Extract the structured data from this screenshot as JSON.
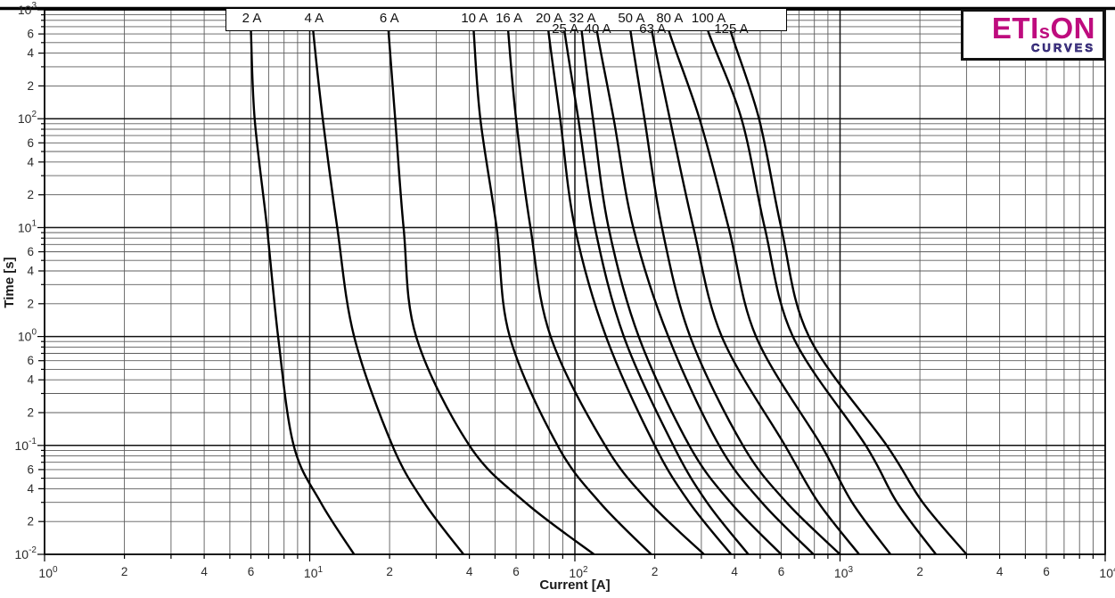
{
  "logo": {
    "text_main_1": "ETI",
    "text_main_2": "s",
    "text_main_3": "ON",
    "text_sub": "CURVES",
    "brand_color": "#BE0C7E",
    "sub_color": "#4A3A8C",
    "sub_outline_color": "#241D66"
  },
  "chart_data": {
    "type": "line",
    "title": "",
    "xlabel": "Current [A]",
    "ylabel": "Time [s]",
    "x_scale": "log",
    "y_scale": "log",
    "xlim": [
      1,
      10000
    ],
    "ylim": [
      0.01,
      1000
    ],
    "grid": "full log-log grid, minor lines 2-9 each decade",
    "legend_position": "labels in white box along top of plot",
    "x_axis": {
      "decade_exponents": [
        0,
        1,
        2,
        3,
        4
      ],
      "minor_labels": [
        "2",
        "4",
        "6"
      ]
    },
    "y_axis": {
      "decade_exponents": [
        3,
        2,
        1,
        0,
        -1,
        -2
      ],
      "minor_labels": [
        "6",
        "4",
        "2"
      ]
    },
    "curve_color": "#000000",
    "grid_major_color": "#111111",
    "grid_minor_color": "#5c5c5c",
    "series": [
      {
        "name": "2 A",
        "label_row": 1,
        "points": [
          [
            5.95,
            1000
          ],
          [
            6.0,
            650
          ],
          [
            6.2,
            100
          ],
          [
            6.9,
            10
          ],
          [
            7.6,
            1
          ],
          [
            8.7,
            0.1
          ],
          [
            11.0,
            0.03
          ],
          [
            14.7,
            0.01
          ]
        ]
      },
      {
        "name": "4 A",
        "label_row": 1,
        "points": [
          [
            10.2,
            1000
          ],
          [
            10.3,
            650
          ],
          [
            11.2,
            100
          ],
          [
            12.7,
            10
          ],
          [
            14.7,
            1
          ],
          [
            20.5,
            0.1
          ],
          [
            27,
            0.03
          ],
          [
            38,
            0.01
          ]
        ]
      },
      {
        "name": "6 A",
        "label_row": 1,
        "points": [
          [
            19.6,
            1000
          ],
          [
            19.8,
            650
          ],
          [
            21,
            100
          ],
          [
            22.6,
            10
          ],
          [
            25.2,
            1
          ],
          [
            40,
            0.1
          ],
          [
            65,
            0.03
          ],
          [
            118,
            0.01
          ]
        ]
      },
      {
        "name": "10 A",
        "label_row": 1,
        "points": [
          [
            41,
            1000
          ],
          [
            41.5,
            650
          ],
          [
            44,
            100
          ],
          [
            50.7,
            10
          ],
          [
            56.8,
            1
          ],
          [
            86,
            0.1
          ],
          [
            124,
            0.03
          ],
          [
            194,
            0.01
          ]
        ]
      },
      {
        "name": "16 A",
        "label_row": 1,
        "points": [
          [
            55.5,
            1000
          ],
          [
            56,
            650
          ],
          [
            60,
            100
          ],
          [
            68,
            10
          ],
          [
            81,
            1
          ],
          [
            130,
            0.1
          ],
          [
            191,
            0.03
          ],
          [
            307,
            0.01
          ]
        ]
      },
      {
        "name": "20 A",
        "label_row": 1,
        "points": [
          [
            78.7,
            1000
          ],
          [
            79.4,
            650
          ],
          [
            88,
            100
          ],
          [
            100,
            10
          ],
          [
            131,
            1
          ],
          [
            200,
            0.1
          ],
          [
            270,
            0.03
          ],
          [
            388,
            0.01
          ]
        ]
      },
      {
        "name": "25 A",
        "label_row": 2,
        "points": [
          [
            90.5,
            1000
          ],
          [
            91.3,
            650
          ],
          [
            103,
            100
          ],
          [
            119,
            10
          ],
          [
            153,
            1
          ],
          [
            235,
            0.1
          ],
          [
            315,
            0.03
          ],
          [
            451,
            0.01
          ]
        ]
      },
      {
        "name": "32 A",
        "label_row": 1,
        "points": [
          [
            105,
            1000
          ],
          [
            106,
            650
          ],
          [
            117,
            100
          ],
          [
            134,
            10
          ],
          [
            174,
            1
          ],
          [
            270,
            0.1
          ],
          [
            386,
            0.03
          ],
          [
            600,
            0.01
          ]
        ]
      },
      {
        "name": "40 A",
        "label_row": 2,
        "points": [
          [
            120,
            1000
          ],
          [
            121,
            650
          ],
          [
            140,
            100
          ],
          [
            166,
            10
          ],
          [
            225,
            1
          ],
          [
            350,
            0.1
          ],
          [
            507,
            0.03
          ],
          [
            794,
            0.01
          ]
        ]
      },
      {
        "name": "50 A",
        "label_row": 1,
        "points": [
          [
            160,
            1000
          ],
          [
            162,
            650
          ],
          [
            183,
            100
          ],
          [
            213,
            10
          ],
          [
            272,
            1
          ],
          [
            430,
            0.1
          ],
          [
            628,
            0.03
          ],
          [
            1000,
            0.01
          ]
        ]
      },
      {
        "name": "63 A",
        "label_row": 2,
        "points": [
          [
            193,
            1000
          ],
          [
            195,
            650
          ],
          [
            228,
            100
          ],
          [
            280,
            10
          ],
          [
            358,
            1
          ],
          [
            620,
            0.1
          ],
          [
            828,
            0.03
          ],
          [
            1180,
            0.01
          ]
        ]
      },
      {
        "name": "80 A",
        "label_row": 1,
        "points": [
          [
            224,
            1000
          ],
          [
            226,
            650
          ],
          [
            295,
            100
          ],
          [
            380,
            10
          ],
          [
            482,
            1
          ],
          [
            850,
            0.1
          ],
          [
            1110,
            0.03
          ],
          [
            1550,
            0.01
          ]
        ]
      },
      {
        "name": "100 A",
        "label_row": 1,
        "points": [
          [
            314,
            1000
          ],
          [
            317,
            650
          ],
          [
            425,
            100
          ],
          [
            520,
            10
          ],
          [
            664,
            1
          ],
          [
            1250,
            0.1
          ],
          [
            1640,
            0.03
          ],
          [
            2300,
            0.01
          ]
        ]
      },
      {
        "name": "125 A",
        "label_row": 2,
        "points": [
          [
            382,
            1000
          ],
          [
            386,
            650
          ],
          [
            495,
            100
          ],
          [
            600,
            10
          ],
          [
            763,
            1
          ],
          [
            1500,
            0.1
          ],
          [
            2050,
            0.03
          ],
          [
            3000,
            0.01
          ]
        ]
      }
    ]
  }
}
